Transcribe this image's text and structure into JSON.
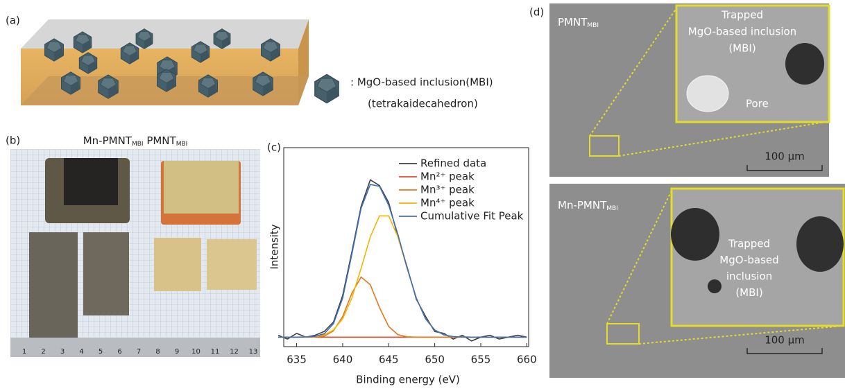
{
  "panel_a": {
    "label": "(a)",
    "legend_text": ": MgO-based inclusion(MBI)",
    "legend_subtext": "(tetrakaidecahedron)"
  },
  "panel_b": {
    "label": "(b)",
    "title": [
      {
        "text": "Mn-PMNT",
        "sub": "MBI"
      },
      {
        "text": " PMNT",
        "sub": "MBI"
      }
    ],
    "ruler_numbers": [
      "1",
      "2",
      "3",
      "4",
      "5",
      "6",
      "7",
      "8",
      "9",
      "10",
      "11",
      "12",
      "13"
    ]
  },
  "chart_data": {
    "type": "line",
    "label": "(c)",
    "x_label": "Binding energy (eV)",
    "y_label": "Intensity",
    "x": [
      633,
      634,
      635,
      636,
      637,
      638,
      639,
      640,
      641,
      642,
      643,
      644,
      645,
      646,
      647,
      648,
      649,
      650,
      651,
      652,
      653,
      654,
      655,
      656,
      657,
      658,
      659,
      660
    ],
    "series": [
      {
        "name": "Refined data",
        "color": "#3c4046",
        "values": [
          0.01,
          -0.01,
          0.02,
          0.0,
          0.01,
          0.03,
          0.08,
          0.22,
          0.45,
          0.69,
          0.83,
          0.8,
          0.71,
          0.53,
          0.37,
          0.2,
          0.11,
          0.03,
          0.02,
          -0.01,
          0.01,
          -0.02,
          0.0,
          0.01,
          -0.01,
          0.0,
          0.01,
          0.0
        ]
      },
      {
        "name": "Mn²⁺ peak",
        "color": "#e8452a",
        "values": [
          0,
          0,
          0,
          0,
          0,
          0,
          0,
          0,
          0,
          0,
          0,
          0,
          0,
          0,
          0,
          0,
          0,
          0,
          0,
          0,
          0,
          0,
          0,
          0,
          0,
          0,
          0,
          0
        ]
      },
      {
        "name": "Mn³⁺ peak",
        "color": "#e2781c",
        "values": [
          0,
          0,
          0,
          0,
          0.001,
          0.006,
          0.033,
          0.109,
          0.232,
          0.317,
          0.277,
          0.156,
          0.056,
          0.013,
          0.002,
          0,
          0,
          0,
          0,
          0,
          0,
          0,
          0,
          0,
          0,
          0,
          0,
          0
        ]
      },
      {
        "name": "Mn⁴⁺ peak",
        "color": "#f2b600",
        "values": [
          0,
          0,
          0,
          0.001,
          0.003,
          0.012,
          0.038,
          0.097,
          0.206,
          0.363,
          0.529,
          0.64,
          0.64,
          0.529,
          0.363,
          0.206,
          0.097,
          0.038,
          0.012,
          0.003,
          0.001,
          0,
          0,
          0,
          0,
          0,
          0,
          0
        ]
      },
      {
        "name": "Cumulative Fit Peak",
        "color": "#3f6fb8",
        "values": [
          0,
          0,
          0,
          0.001,
          0.004,
          0.018,
          0.071,
          0.206,
          0.438,
          0.68,
          0.806,
          0.796,
          0.696,
          0.542,
          0.365,
          0.206,
          0.097,
          0.038,
          0.012,
          0.003,
          0.001,
          0,
          0,
          0,
          0,
          0,
          0,
          0
        ]
      }
    ],
    "xlim": [
      633.6,
      660.2
    ],
    "ylim": [
      -0.05,
      1
    ],
    "xticks": [
      635,
      640,
      645,
      650,
      655,
      660
    ]
  },
  "panel_d": {
    "label": "(d)",
    "top": {
      "sample": {
        "text": "PMNT",
        "sub": "MBI"
      },
      "inset_lines": [
        "Trapped",
        "MgO-based inclusion",
        "(MBI)"
      ],
      "pore": "Pore",
      "scale": "100 μm"
    },
    "bottom": {
      "sample": {
        "text": "Mn-PMNT",
        "sub": "MBI"
      },
      "inset_lines": [
        "Trapped",
        "MgO-based",
        "inclusion",
        "(MBI)"
      ],
      "scale": "100 μm"
    }
  }
}
